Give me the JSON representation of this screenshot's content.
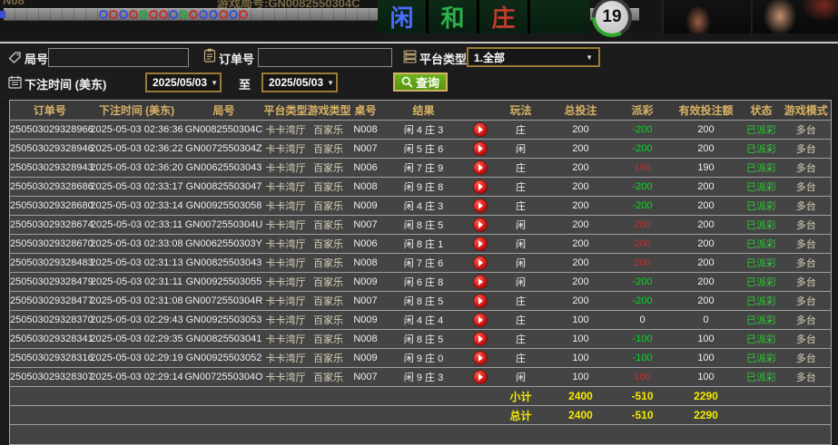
{
  "top_bar": {
    "partial_left_text": "N08",
    "round_label": "游戏局号:GN0082550304C",
    "tiles": [
      {
        "label": "闲",
        "color": "#4a6cff"
      },
      {
        "label": "和",
        "color": "#2bb24c"
      },
      {
        "label": "庄",
        "color": "#c03a2e"
      }
    ],
    "timer": "19",
    "bead_road": [
      "blue",
      "red",
      "blue",
      "red",
      "green",
      "red",
      "red",
      "blue",
      "green",
      "red",
      "blue",
      "blue",
      "red",
      "blue",
      "red"
    ]
  },
  "filters": {
    "round_label": "局号",
    "round_value": "",
    "order_label": "订单号",
    "order_value": "",
    "platform_label": "平台类型",
    "platform_value": "1.全部",
    "bet_time_label": "下注时间 (美东)",
    "date_from": "2025/05/03",
    "to_label": "至",
    "date_to": "2025/05/03",
    "query_label": "查询"
  },
  "table": {
    "headers": [
      "订单号",
      "下注时间 (美东)",
      "局号",
      "平台类型",
      "游戏类型",
      "桌号",
      "结果",
      "",
      "玩法",
      "总投注",
      "派彩",
      "有效投注额",
      "状态",
      "游戏模式"
    ],
    "rows": [
      {
        "order": "250503029328966",
        "time": "2025-05-03 02:36:36",
        "round": "GN0082550304C",
        "platform": "卡卡湾厅",
        "game": "百家乐",
        "table_no": "N008",
        "result": "闲 4 庄 3",
        "play": "庄",
        "total_bet": "200",
        "payout": "-200",
        "payout_sign": "neg",
        "valid_bet": "200",
        "status": "已派彩",
        "mode": "多台"
      },
      {
        "order": "250503029328946",
        "time": "2025-05-03 02:36:22",
        "round": "GN0072550304Z",
        "platform": "卡卡湾厅",
        "game": "百家乐",
        "table_no": "N007",
        "result": "闲 5 庄 6",
        "play": "闲",
        "total_bet": "200",
        "payout": "-200",
        "payout_sign": "neg",
        "valid_bet": "200",
        "status": "已派彩",
        "mode": "多台"
      },
      {
        "order": "250503029328943",
        "time": "2025-05-03 02:36:20",
        "round": "GN00625503043",
        "platform": "卡卡湾厅",
        "game": "百家乐",
        "table_no": "N006",
        "result": "闲 7 庄 9",
        "play": "庄",
        "total_bet": "200",
        "payout": "190",
        "payout_sign": "pos",
        "valid_bet": "190",
        "status": "已派彩",
        "mode": "多台"
      },
      {
        "order": "250503029328686",
        "time": "2025-05-03 02:33:17",
        "round": "GN00825503047",
        "platform": "卡卡湾厅",
        "game": "百家乐",
        "table_no": "N008",
        "result": "闲 9 庄 8",
        "play": "庄",
        "total_bet": "200",
        "payout": "-200",
        "payout_sign": "neg",
        "valid_bet": "200",
        "status": "已派彩",
        "mode": "多台"
      },
      {
        "order": "250503029328680",
        "time": "2025-05-03 02:33:14",
        "round": "GN00925503058",
        "platform": "卡卡湾厅",
        "game": "百家乐",
        "table_no": "N009",
        "result": "闲 4 庄 3",
        "play": "庄",
        "total_bet": "200",
        "payout": "-200",
        "payout_sign": "neg",
        "valid_bet": "200",
        "status": "已派彩",
        "mode": "多台"
      },
      {
        "order": "250503029328674",
        "time": "2025-05-03 02:33:11",
        "round": "GN0072550304U",
        "platform": "卡卡湾厅",
        "game": "百家乐",
        "table_no": "N007",
        "result": "闲 8 庄 5",
        "play": "闲",
        "total_bet": "200",
        "payout": "200",
        "payout_sign": "pos",
        "valid_bet": "200",
        "status": "已派彩",
        "mode": "多台"
      },
      {
        "order": "250503029328670",
        "time": "2025-05-03 02:33:08",
        "round": "GN0062550303Y",
        "platform": "卡卡湾厅",
        "game": "百家乐",
        "table_no": "N006",
        "result": "闲 8 庄 1",
        "play": "闲",
        "total_bet": "200",
        "payout": "200",
        "payout_sign": "pos",
        "valid_bet": "200",
        "status": "已派彩",
        "mode": "多台"
      },
      {
        "order": "250503029328483",
        "time": "2025-05-03 02:31:13",
        "round": "GN00825503043",
        "platform": "卡卡湾厅",
        "game": "百家乐",
        "table_no": "N008",
        "result": "闲 7 庄 6",
        "play": "闲",
        "total_bet": "200",
        "payout": "200",
        "payout_sign": "pos",
        "valid_bet": "200",
        "status": "已派彩",
        "mode": "多台"
      },
      {
        "order": "250503029328479",
        "time": "2025-05-03 02:31:11",
        "round": "GN00925503055",
        "platform": "卡卡湾厅",
        "game": "百家乐",
        "table_no": "N009",
        "result": "闲 6 庄 8",
        "play": "闲",
        "total_bet": "200",
        "payout": "-200",
        "payout_sign": "neg",
        "valid_bet": "200",
        "status": "已派彩",
        "mode": "多台"
      },
      {
        "order": "250503029328477",
        "time": "2025-05-03 02:31:08",
        "round": "GN0072550304R",
        "platform": "卡卡湾厅",
        "game": "百家乐",
        "table_no": "N007",
        "result": "闲 8 庄 5",
        "play": "庄",
        "total_bet": "200",
        "payout": "-200",
        "payout_sign": "neg",
        "valid_bet": "200",
        "status": "已派彩",
        "mode": "多台"
      },
      {
        "order": "250503029328370",
        "time": "2025-05-03 02:29:43",
        "round": "GN00925503053",
        "platform": "卡卡湾厅",
        "game": "百家乐",
        "table_no": "N009",
        "result": "闲 4 庄 4",
        "play": "庄",
        "total_bet": "100",
        "payout": "0",
        "payout_sign": "zero",
        "valid_bet": "0",
        "status": "已派彩",
        "mode": "多台"
      },
      {
        "order": "250503029328341",
        "time": "2025-05-03 02:29:35",
        "round": "GN00825503041",
        "platform": "卡卡湾厅",
        "game": "百家乐",
        "table_no": "N008",
        "result": "闲 8 庄 5",
        "play": "庄",
        "total_bet": "100",
        "payout": "-100",
        "payout_sign": "neg",
        "valid_bet": "100",
        "status": "已派彩",
        "mode": "多台"
      },
      {
        "order": "250503029328316",
        "time": "2025-05-03 02:29:19",
        "round": "GN00925503052",
        "platform": "卡卡湾厅",
        "game": "百家乐",
        "table_no": "N009",
        "result": "闲 9 庄 0",
        "play": "庄",
        "total_bet": "100",
        "payout": "-100",
        "payout_sign": "neg",
        "valid_bet": "100",
        "status": "已派彩",
        "mode": "多台"
      },
      {
        "order": "250503029328307",
        "time": "2025-05-03 02:29:14",
        "round": "GN0072550304O",
        "platform": "卡卡湾厅",
        "game": "百家乐",
        "table_no": "N007",
        "result": "闲 9 庄 3",
        "play": "闲",
        "total_bet": "100",
        "payout": "100",
        "payout_sign": "pos",
        "valid_bet": "100",
        "status": "已派彩",
        "mode": "多台"
      }
    ],
    "subtotal": {
      "label": "小计",
      "total_bet": "2400",
      "payout": "-510",
      "valid_bet": "2290"
    },
    "total": {
      "label": "总计",
      "total_bet": "2400",
      "payout": "-510",
      "valid_bet": "2290"
    }
  },
  "colors": {
    "gold_border": "#9c7a35",
    "header_text": "#d8b266",
    "query_green": "#5da814",
    "payout_negative": "#00dd22",
    "payout_positive": "#c22f2f",
    "status_paid": "#29cc33",
    "summary_yellow": "#f2ea00",
    "bead_blue": "#3a4fd8",
    "bead_red": "#c03030",
    "bead_green": "#2e9e40"
  }
}
